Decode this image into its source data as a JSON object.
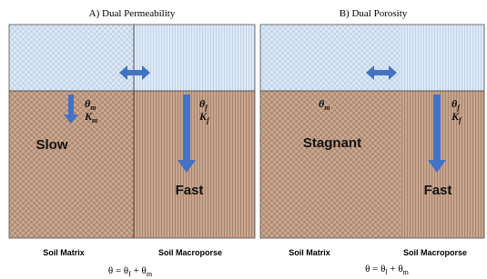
{
  "panels": [
    {
      "title": "A) Dual Permeability",
      "matrix_params": [
        {
          "symbol": "θ",
          "sub": "m"
        },
        {
          "symbol": "K",
          "sub": "m"
        }
      ],
      "matrix_label": "Slow",
      "macro_params": [
        {
          "symbol": "θ",
          "sub": "f"
        },
        {
          "symbol": "K",
          "sub": "f"
        }
      ],
      "macro_label": "Fast",
      "bottom_left": "Soil Matrix",
      "bottom_right": "Soil Macroporse",
      "equation": [
        {
          "text": "θ = θ"
        },
        {
          "sub": "f"
        },
        {
          "text": " + θ"
        },
        {
          "sub": "m"
        }
      ]
    },
    {
      "title": "B) Dual Porosity",
      "matrix_params": [
        {
          "symbol": "θ",
          "sub": "m"
        }
      ],
      "matrix_label": "Stagnant",
      "macro_params": [
        {
          "symbol": "θ",
          "sub": "f"
        },
        {
          "symbol": "K",
          "sub": "f"
        }
      ],
      "macro_label": "Fast",
      "bottom_left": "Soil Matrix",
      "bottom_right": "Soil Macroporse",
      "equation": [
        {
          "text": "θ = θ"
        },
        {
          "sub": "l"
        },
        {
          "text": " + θ"
        },
        {
          "sub": "m"
        }
      ]
    }
  ]
}
